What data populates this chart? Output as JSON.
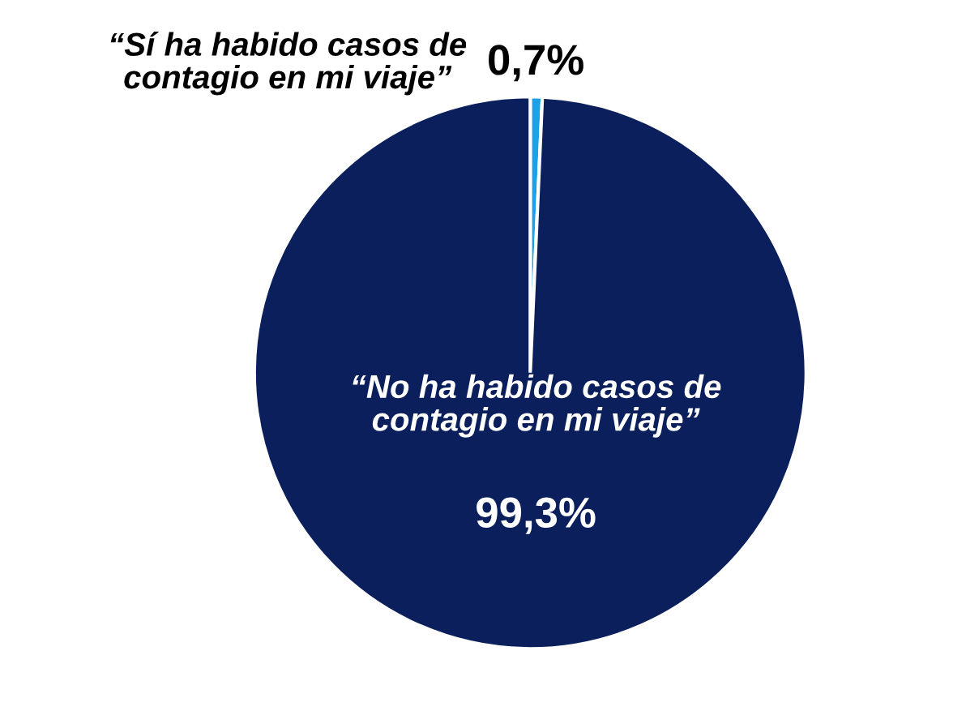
{
  "chart_data": {
    "type": "pie",
    "categories": [
      "“Sí ha habido casos de\ncontagio en mi viaje”",
      "“No ha habido casos de\ncontagio en mi viaje”"
    ],
    "values": [
      0.7,
      99.3
    ],
    "colors": [
      "#1ea0e6",
      "#0a1f5c"
    ],
    "value_labels": [
      "0,7%",
      "99,3%"
    ]
  }
}
